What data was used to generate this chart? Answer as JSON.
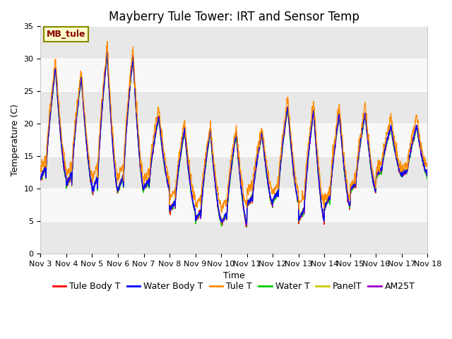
{
  "title": "Mayberry Tule Tower: IRT and Sensor Temp",
  "xlabel": "Time",
  "ylabel": "Temperature (C)",
  "ylim": [
    0,
    35
  ],
  "yticks": [
    0,
    5,
    10,
    15,
    20,
    25,
    30,
    35
  ],
  "date_labels": [
    "Nov 3",
    "Nov 4",
    "Nov 5",
    "Nov 6",
    "Nov 7",
    "Nov 8",
    "Nov 9",
    "Nov 10",
    "Nov 11",
    "Nov 12",
    "Nov 13",
    "Nov 14",
    "Nov 15",
    "Nov 16",
    "Nov 17",
    "Nov 18"
  ],
  "series_colors": {
    "Tule Body T": "#ff0000",
    "Water Body T": "#0000ff",
    "Tule T": "#ff8c00",
    "Water T": "#00cc00",
    "PanelT": "#cccc00",
    "AM25T": "#9900cc"
  },
  "series_names": [
    "Tule Body T",
    "Water Body T",
    "Tule T",
    "Water T",
    "PanelT",
    "AM25T"
  ],
  "annotation_text": "MB_tule",
  "annotation_bg": "#ffffcc",
  "annotation_border": "#888800",
  "annotation_text_color": "#880000",
  "fig_facecolor": "#ffffff",
  "plot_facecolor": "#f0f0f0",
  "title_fontsize": 12,
  "axis_fontsize": 9,
  "tick_fontsize": 8,
  "legend_fontsize": 9,
  "day_peaks": [
    28.5,
    27.2,
    30.8,
    30.3,
    21.0,
    19.0,
    18.8,
    18.5,
    18.5,
    22.5,
    22.0,
    21.5,
    21.5,
    19.5,
    19.5
  ],
  "day_troughs": [
    11.5,
    10.5,
    9.5,
    9.7,
    10.0,
    6.5,
    5.0,
    4.5,
    7.5,
    8.0,
    5.0,
    7.0,
    9.5,
    12.0,
    12.0
  ],
  "tule_t_offsets": [
    1.5,
    1.2,
    1.5,
    1.5,
    1.5,
    1.5,
    1.0,
    1.0,
    1.0,
    1.5,
    1.5,
    1.5,
    1.5,
    1.5,
    1.5
  ],
  "tule_t_trough_offsets": [
    1.5,
    1.5,
    2.0,
    2.0,
    1.5,
    2.0,
    2.5,
    2.5,
    2.0,
    1.5,
    2.5,
    1.5,
    1.0,
    1.0,
    1.0
  ]
}
